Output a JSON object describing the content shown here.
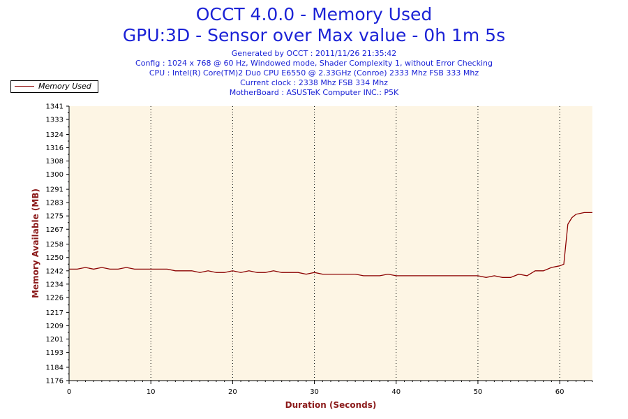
{
  "header": {
    "title_line1": "OCCT 4.0.0 - Memory Used",
    "title_line2": "GPU:3D - Sensor over Max value - 0h 1m 5s",
    "info": [
      "Generated by OCCT : 2011/11/26 21:35:42",
      "Config : 1024 x 768 @ 60 Hz, Windowed mode, Shader Complexity 1, without Error Checking",
      "CPU : Intel(R) Core(TM)2 Duo CPU E6550 @ 2.33GHz (Conroe) 2333 Mhz FSB 333 Mhz",
      "Current clock : 2338 Mhz FSB 334 Mhz",
      "MotherBoard : ASUSTeK Computer INC.: P5K"
    ]
  },
  "colors": {
    "title": "#1b22d6",
    "axis_label": "#8b1a1a",
    "plot_background": "#fdf5e4",
    "series": "#8b0000"
  },
  "chart_data": {
    "type": "line",
    "title": "OCCT 4.0.0 - Memory Used",
    "xlabel": "Duration (Seconds)",
    "ylabel": "Memory Available (MB)",
    "xlim": [
      0,
      64
    ],
    "ylim": [
      1176,
      1341
    ],
    "x_ticks": [
      0,
      10,
      20,
      30,
      40,
      50,
      60
    ],
    "y_ticks": [
      1176,
      1184,
      1193,
      1201,
      1209,
      1217,
      1226,
      1234,
      1242,
      1250,
      1258,
      1267,
      1275,
      1283,
      1291,
      1300,
      1308,
      1316,
      1324,
      1333,
      1341
    ],
    "grid": "vertical dotted",
    "legend_position": "top-left",
    "series": [
      {
        "name": "Memory Used",
        "x": [
          0,
          1,
          2,
          3,
          4,
          5,
          6,
          7,
          8,
          9,
          10,
          11,
          12,
          13,
          14,
          15,
          16,
          17,
          18,
          19,
          20,
          21,
          22,
          23,
          24,
          25,
          26,
          27,
          28,
          29,
          30,
          31,
          32,
          33,
          34,
          35,
          36,
          37,
          38,
          39,
          40,
          41,
          42,
          43,
          44,
          45,
          46,
          47,
          48,
          49,
          50,
          51,
          52,
          53,
          54,
          55,
          56,
          57,
          58,
          59,
          60,
          60.5,
          61,
          61.5,
          62,
          63,
          64
        ],
        "y": [
          1243,
          1243,
          1244,
          1243,
          1244,
          1243,
          1243,
          1244,
          1243,
          1243,
          1243,
          1243,
          1243,
          1242,
          1242,
          1242,
          1241,
          1242,
          1241,
          1241,
          1242,
          1241,
          1242,
          1241,
          1241,
          1242,
          1241,
          1241,
          1241,
          1240,
          1241,
          1240,
          1240,
          1240,
          1240,
          1240,
          1239,
          1239,
          1239,
          1240,
          1239,
          1239,
          1239,
          1239,
          1239,
          1239,
          1239,
          1239,
          1239,
          1239,
          1239,
          1238,
          1239,
          1238,
          1238,
          1240,
          1239,
          1242,
          1242,
          1244,
          1245,
          1246,
          1270,
          1274,
          1276,
          1277,
          1277
        ]
      }
    ]
  }
}
